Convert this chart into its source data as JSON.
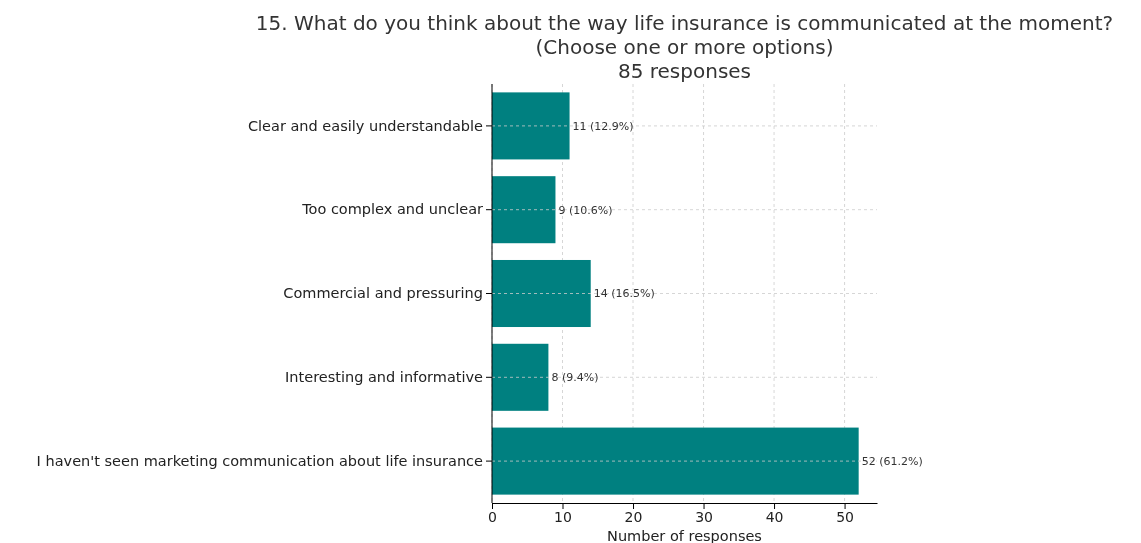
{
  "chart_data": {
    "type": "bar",
    "orientation": "horizontal",
    "title": "15. What do you think about the way life insurance is communicated at the moment?\n(Choose one or more options)\n85 responses",
    "xlabel": "Number of responses",
    "categories": [
      "Clear and easily understandable",
      "Too complex and unclear",
      "Commercial and pressuring",
      "Interesting and informative",
      "I haven't seen marketing communication about life insurance"
    ],
    "values": [
      11,
      9,
      14,
      8,
      52
    ],
    "value_labels": [
      "11 (12.9%)",
      "9 (10.6%)",
      "14 (16.5%)",
      "8 (9.4%)",
      "52 (61.2%)"
    ],
    "color": "#008080",
    "xlim": [
      0,
      54.6
    ],
    "xticks": [
      0,
      10,
      20,
      30,
      40,
      50
    ],
    "grid": true
  }
}
